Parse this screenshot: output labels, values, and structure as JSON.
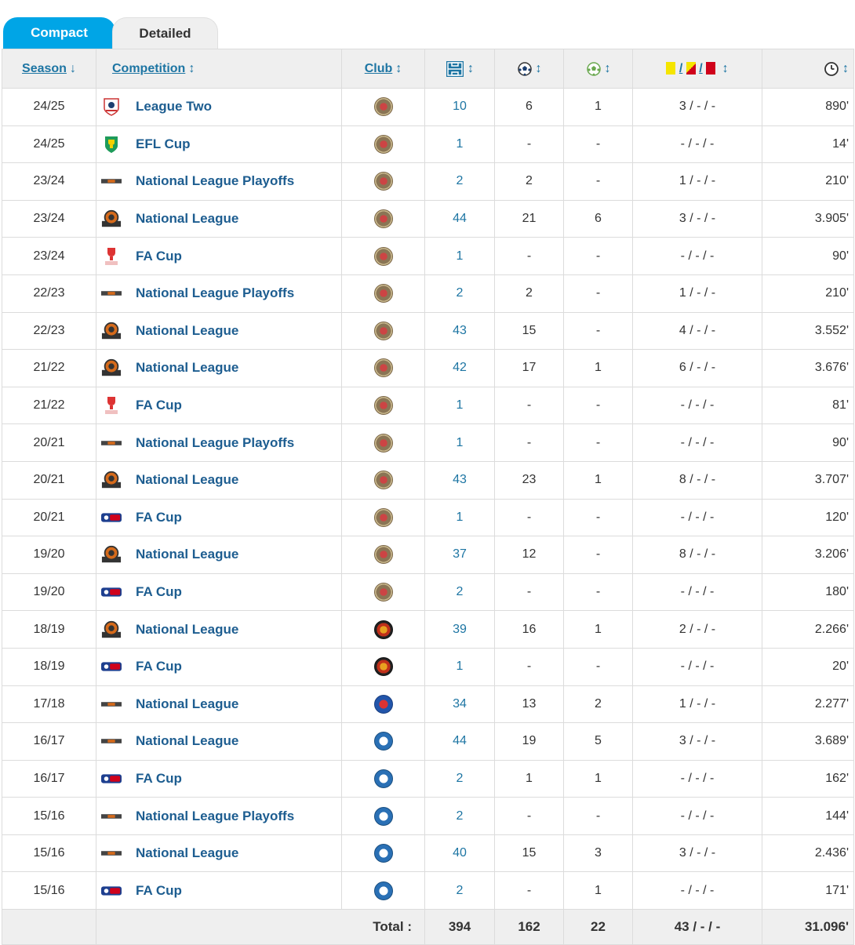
{
  "tabs": {
    "compact": "Compact",
    "detailed": "Detailed"
  },
  "headers": {
    "season": "Season",
    "season_arrow": "↓",
    "competition": "Competition",
    "club": "Club",
    "sort_arrow": "↕",
    "cards_sep": "/"
  },
  "icons": {
    "appearances": "appearances-icon",
    "goals": "goals-icon",
    "assists": "assists-icon",
    "cards": "cards-icon",
    "minutes": "clock-icon"
  },
  "rows": [
    {
      "season": "24/25",
      "logo": "league-two",
      "competition": "League Two",
      "crest": "a",
      "apps": "10",
      "goals": "6",
      "assists": "1",
      "cards": "3 / - / -",
      "minutes": "890'"
    },
    {
      "season": "24/25",
      "logo": "efl-cup",
      "competition": "EFL Cup",
      "crest": "a",
      "apps": "1",
      "goals": "-",
      "assists": "-",
      "cards": "- / - / -",
      "minutes": "14'"
    },
    {
      "season": "23/24",
      "logo": "nl-bar",
      "competition": "National League Playoffs",
      "crest": "a",
      "apps": "2",
      "goals": "2",
      "assists": "-",
      "cards": "1 / - / -",
      "minutes": "210'"
    },
    {
      "season": "23/24",
      "logo": "national-league",
      "competition": "National League",
      "crest": "a",
      "apps": "44",
      "goals": "21",
      "assists": "6",
      "cards": "3 / - / -",
      "minutes": "3.905'"
    },
    {
      "season": "23/24",
      "logo": "fa-cup-old",
      "competition": "FA Cup",
      "crest": "a",
      "apps": "1",
      "goals": "-",
      "assists": "-",
      "cards": "- / - / -",
      "minutes": "90'"
    },
    {
      "season": "22/23",
      "logo": "nl-bar",
      "competition": "National League Playoffs",
      "crest": "a",
      "apps": "2",
      "goals": "2",
      "assists": "-",
      "cards": "1 / - / -",
      "minutes": "210'"
    },
    {
      "season": "22/23",
      "logo": "national-league",
      "competition": "National League",
      "crest": "a",
      "apps": "43",
      "goals": "15",
      "assists": "-",
      "cards": "4 / - / -",
      "minutes": "3.552'"
    },
    {
      "season": "21/22",
      "logo": "national-league",
      "competition": "National League",
      "crest": "a",
      "apps": "42",
      "goals": "17",
      "assists": "1",
      "cards": "6 / - / -",
      "minutes": "3.676'"
    },
    {
      "season": "21/22",
      "logo": "fa-cup-old",
      "competition": "FA Cup",
      "crest": "a",
      "apps": "1",
      "goals": "-",
      "assists": "-",
      "cards": "- / - / -",
      "minutes": "81'"
    },
    {
      "season": "20/21",
      "logo": "nl-bar",
      "competition": "National League Playoffs",
      "crest": "a",
      "apps": "1",
      "goals": "-",
      "assists": "-",
      "cards": "- / - / -",
      "minutes": "90'"
    },
    {
      "season": "20/21",
      "logo": "national-league",
      "competition": "National League",
      "crest": "a",
      "apps": "43",
      "goals": "23",
      "assists": "1",
      "cards": "8 / - / -",
      "minutes": "3.707'"
    },
    {
      "season": "20/21",
      "logo": "fa-cup",
      "competition": "FA Cup",
      "crest": "a",
      "apps": "1",
      "goals": "-",
      "assists": "-",
      "cards": "- / - / -",
      "minutes": "120'"
    },
    {
      "season": "19/20",
      "logo": "national-league",
      "competition": "National League",
      "crest": "a",
      "apps": "37",
      "goals": "12",
      "assists": "-",
      "cards": "8 / - / -",
      "minutes": "3.206'"
    },
    {
      "season": "19/20",
      "logo": "fa-cup",
      "competition": "FA Cup",
      "crest": "a",
      "apps": "2",
      "goals": "-",
      "assists": "-",
      "cards": "- / - / -",
      "minutes": "180'"
    },
    {
      "season": "18/19",
      "logo": "national-league",
      "competition": "National League",
      "crest": "b",
      "apps": "39",
      "goals": "16",
      "assists": "1",
      "cards": "2 / - / -",
      "minutes": "2.266'"
    },
    {
      "season": "18/19",
      "logo": "fa-cup",
      "competition": "FA Cup",
      "crest": "b",
      "apps": "1",
      "goals": "-",
      "assists": "-",
      "cards": "- / - / -",
      "minutes": "20'"
    },
    {
      "season": "17/18",
      "logo": "nl-bar",
      "competition": "National League",
      "crest": "c",
      "apps": "34",
      "goals": "13",
      "assists": "2",
      "cards": "1 / - / -",
      "minutes": "2.277'"
    },
    {
      "season": "16/17",
      "logo": "nl-bar",
      "competition": "National League",
      "crest": "d",
      "apps": "44",
      "goals": "19",
      "assists": "5",
      "cards": "3 / - / -",
      "minutes": "3.689'"
    },
    {
      "season": "16/17",
      "logo": "fa-cup",
      "competition": "FA Cup",
      "crest": "d",
      "apps": "2",
      "goals": "1",
      "assists": "1",
      "cards": "- / - / -",
      "minutes": "162'"
    },
    {
      "season": "15/16",
      "logo": "nl-bar",
      "competition": "National League Playoffs",
      "crest": "d",
      "apps": "2",
      "goals": "-",
      "assists": "-",
      "cards": "- / - / -",
      "minutes": "144'"
    },
    {
      "season": "15/16",
      "logo": "nl-bar",
      "competition": "National League",
      "crest": "d",
      "apps": "40",
      "goals": "15",
      "assists": "3",
      "cards": "3 / - / -",
      "minutes": "2.436'"
    },
    {
      "season": "15/16",
      "logo": "fa-cup",
      "competition": "FA Cup",
      "crest": "d",
      "apps": "2",
      "goals": "-",
      "assists": "1",
      "cards": "- / - / -",
      "minutes": "171'"
    }
  ],
  "totals": {
    "label": "Total :",
    "apps": "394",
    "goals": "162",
    "assists": "22",
    "cards": "43 / - / -",
    "minutes": "31.096'"
  },
  "colors": {
    "accent": "#00a5e6",
    "link": "#1d75a3",
    "header_bg": "#efefef",
    "border": "#dcdcdc",
    "yellow": "#f5e500",
    "red": "#d0021b"
  }
}
